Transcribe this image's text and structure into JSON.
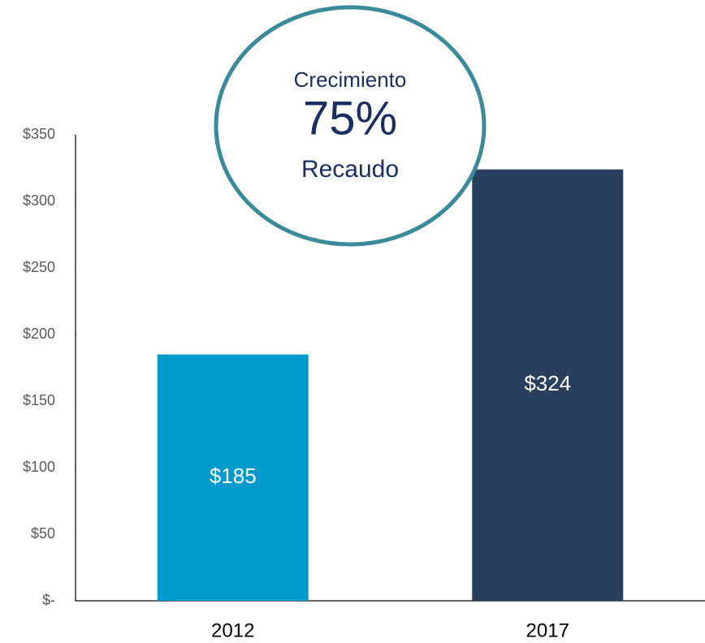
{
  "chart_data": {
    "type": "bar",
    "categories": [
      "2012",
      "2017"
    ],
    "series": [
      {
        "colors": [
          "#0099cc",
          "#283f5e"
        ],
        "values": [
          185,
          324
        ],
        "value_labels": [
          "$185",
          "$324"
        ]
      }
    ],
    "ylim": [
      0,
      350
    ],
    "yticks": [
      {
        "value": 0,
        "label": "$-"
      },
      {
        "value": 50,
        "label": "$50"
      },
      {
        "value": 100,
        "label": "$100"
      },
      {
        "value": 150,
        "label": "$150"
      },
      {
        "value": 200,
        "label": "$200"
      },
      {
        "value": 250,
        "label": "$250"
      },
      {
        "value": 300,
        "label": "$300"
      },
      {
        "value": 350,
        "label": "$350"
      }
    ],
    "annotations": [
      "Crecimiento",
      "75%",
      "Recaudo"
    ]
  }
}
